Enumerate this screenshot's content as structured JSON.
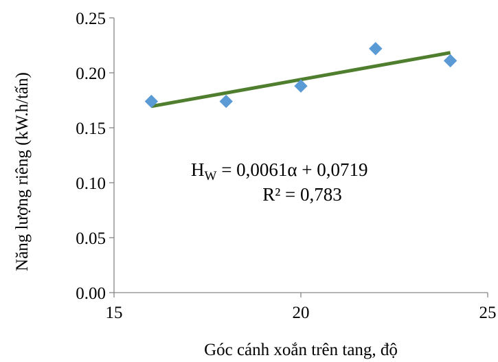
{
  "chart_data": {
    "type": "scatter",
    "title": "",
    "xlabel": "Góc cánh xoắn trên tang, độ",
    "ylabel": "Năng lượng riêng (kW.h/tấn)",
    "xlim": [
      15,
      25
    ],
    "ylim": [
      0.0,
      0.25
    ],
    "xticks": [
      15,
      20,
      25
    ],
    "xtick_labels": [
      "15",
      "20",
      "25"
    ],
    "yticks": [
      0.0,
      0.05,
      0.1,
      0.15,
      0.2,
      0.25
    ],
    "ytick_labels": [
      "0.00",
      "0.05",
      "0.10",
      "0.15",
      "0.20",
      "0.25"
    ],
    "grid": false,
    "legend": "none",
    "series": [
      {
        "marker": "diamond",
        "color": "#5b9bd5",
        "x": [
          16,
          18,
          20,
          22,
          24
        ],
        "y": [
          0.174,
          0.174,
          0.188,
          0.222,
          0.211
        ]
      }
    ],
    "trendline": {
      "type": "linear",
      "color": "#4f7f2e",
      "slope": 0.0061,
      "intercept": 0.0719,
      "x_range": [
        16,
        24
      ]
    },
    "annotation": {
      "equation_lhs": "H",
      "equation_sub": "W",
      "equation_rhs": " = 0,0061α + 0,0719",
      "r2": "R² = 0,783"
    }
  }
}
